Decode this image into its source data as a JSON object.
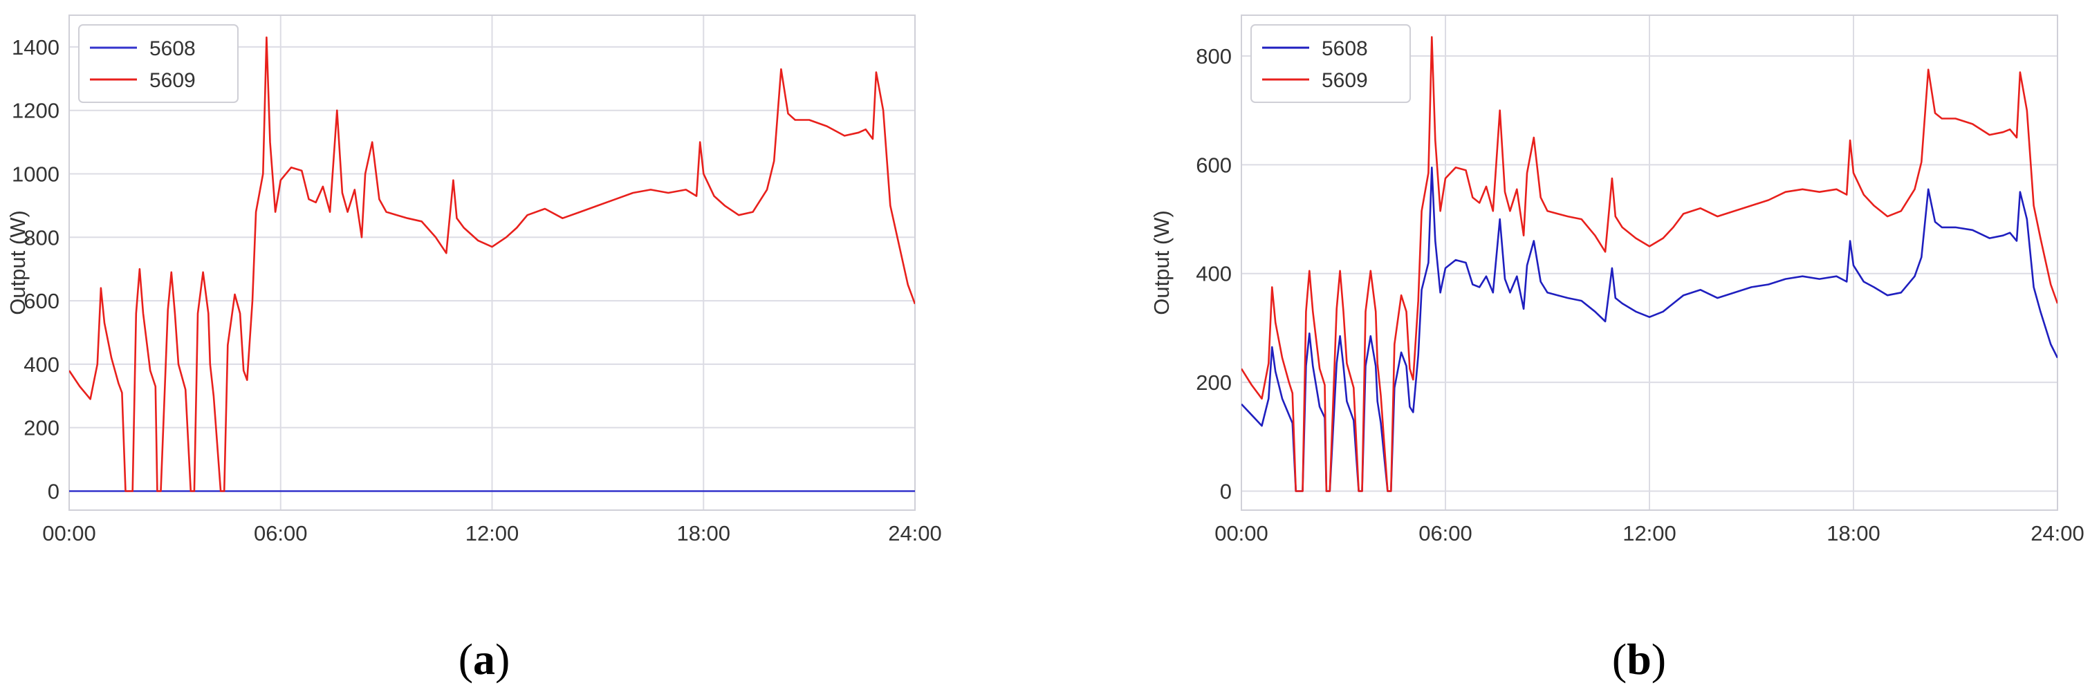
{
  "chart_data": [
    {
      "type": "line",
      "panel_label": "a",
      "xlabel": "",
      "ylabel": "Output (W)",
      "xlim": [
        0,
        24
      ],
      "ylim": [
        -60,
        1500
      ],
      "xticks": [
        0,
        6,
        12,
        18,
        24
      ],
      "xtick_labels": [
        "00:00",
        "06:00",
        "12:00",
        "18:00",
        "24:00"
      ],
      "yticks": [
        0,
        200,
        400,
        600,
        800,
        1000,
        1200,
        1400
      ],
      "ytick_labels": [
        "0",
        "200",
        "400",
        "600",
        "800",
        "1000",
        "1200",
        "1400"
      ],
      "grid": true,
      "legend": "top-left",
      "series": [
        {
          "name": "5608",
          "color": "#3333cc",
          "x": [
            0,
            24
          ],
          "y": [
            0,
            0
          ]
        },
        {
          "name": "5609",
          "color": "#e8201c",
          "x": [
            0,
            0.3,
            0.6,
            0.8,
            0.9,
            1.0,
            1.2,
            1.4,
            1.5,
            1.6,
            1.8,
            1.9,
            2.0,
            2.1,
            2.3,
            2.45,
            2.5,
            2.6,
            2.8,
            2.9,
            3.0,
            3.1,
            3.3,
            3.45,
            3.55,
            3.65,
            3.8,
            3.95,
            4.0,
            4.1,
            4.3,
            4.4,
            4.5,
            4.7,
            4.85,
            4.95,
            5.05,
            5.2,
            5.3,
            5.5,
            5.6,
            5.7,
            5.85,
            6.0,
            6.3,
            6.6,
            6.8,
            7.0,
            7.2,
            7.4,
            7.6,
            7.75,
            7.9,
            8.1,
            8.3,
            8.4,
            8.6,
            8.8,
            9.0,
            9.3,
            9.6,
            10.0,
            10.4,
            10.7,
            10.9,
            11.0,
            11.2,
            11.6,
            12.0,
            12.4,
            12.7,
            13.0,
            13.5,
            14.0,
            14.5,
            15.0,
            15.5,
            16.0,
            16.5,
            17.0,
            17.5,
            17.8,
            17.9,
            18.0,
            18.3,
            18.6,
            19.0,
            19.4,
            19.8,
            20.0,
            20.2,
            20.4,
            20.6,
            21.0,
            21.5,
            22.0,
            22.4,
            22.6,
            22.8,
            22.9,
            23.1,
            23.3,
            23.5,
            23.8,
            24.0
          ],
          "y": [
            380,
            330,
            290,
            400,
            640,
            530,
            420,
            340,
            310,
            0,
            0,
            560,
            700,
            560,
            380,
            330,
            0,
            0,
            570,
            690,
            560,
            400,
            320,
            0,
            0,
            560,
            690,
            560,
            400,
            300,
            0,
            0,
            460,
            620,
            560,
            380,
            350,
            600,
            880,
            1000,
            1430,
            1100,
            880,
            980,
            1020,
            1010,
            920,
            910,
            960,
            880,
            1200,
            940,
            880,
            950,
            800,
            1000,
            1100,
            920,
            880,
            870,
            860,
            850,
            800,
            750,
            980,
            860,
            830,
            790,
            770,
            800,
            830,
            870,
            890,
            860,
            880,
            900,
            920,
            940,
            950,
            940,
            950,
            930,
            1100,
            1000,
            930,
            900,
            870,
            880,
            950,
            1040,
            1330,
            1190,
            1170,
            1170,
            1150,
            1120,
            1130,
            1140,
            1110,
            1320,
            1200,
            900,
            800,
            650,
            590
          ]
        }
      ]
    },
    {
      "type": "line",
      "panel_label": "b",
      "xlabel": "",
      "ylabel": "Output (W)",
      "xlim": [
        0,
        24
      ],
      "ylim": [
        -35,
        875
      ],
      "xticks": [
        0,
        6,
        12,
        18,
        24
      ],
      "xtick_labels": [
        "00:00",
        "06:00",
        "12:00",
        "18:00",
        "24:00"
      ],
      "yticks": [
        0,
        200,
        400,
        600,
        800
      ],
      "ytick_labels": [
        "0",
        "200",
        "400",
        "600",
        "800"
      ],
      "grid": true,
      "legend": "top-left",
      "series": [
        {
          "name": "5608",
          "color": "#1f1fbf",
          "x": [
            0,
            0.3,
            0.6,
            0.8,
            0.9,
            1.0,
            1.2,
            1.4,
            1.5,
            1.6,
            1.8,
            1.9,
            2.0,
            2.1,
            2.3,
            2.45,
            2.5,
            2.6,
            2.8,
            2.9,
            3.0,
            3.1,
            3.3,
            3.45,
            3.55,
            3.65,
            3.8,
            3.95,
            4.0,
            4.1,
            4.3,
            4.4,
            4.5,
            4.7,
            4.85,
            4.95,
            5.05,
            5.2,
            5.3,
            5.5,
            5.6,
            5.7,
            5.85,
            6.0,
            6.3,
            6.6,
            6.8,
            7.0,
            7.2,
            7.4,
            7.6,
            7.75,
            7.9,
            8.1,
            8.3,
            8.4,
            8.6,
            8.8,
            9.0,
            9.3,
            9.6,
            10.0,
            10.4,
            10.7,
            10.9,
            11.0,
            11.2,
            11.6,
            12.0,
            12.4,
            12.7,
            13.0,
            13.5,
            14.0,
            14.5,
            15.0,
            15.5,
            16.0,
            16.5,
            17.0,
            17.5,
            17.8,
            17.9,
            18.0,
            18.3,
            18.6,
            19.0,
            19.4,
            19.8,
            20.0,
            20.2,
            20.4,
            20.6,
            21.0,
            21.5,
            22.0,
            22.4,
            22.6,
            22.8,
            22.9,
            23.1,
            23.3,
            23.5,
            23.8,
            24.0
          ],
          "y": [
            160,
            140,
            120,
            170,
            265,
            220,
            170,
            140,
            125,
            0,
            0,
            230,
            290,
            230,
            155,
            135,
            0,
            0,
            235,
            285,
            230,
            165,
            130,
            0,
            0,
            230,
            285,
            230,
            165,
            125,
            0,
            0,
            190,
            255,
            230,
            155,
            145,
            250,
            370,
            420,
            595,
            460,
            365,
            410,
            425,
            420,
            380,
            375,
            395,
            365,
            500,
            390,
            365,
            395,
            335,
            415,
            460,
            385,
            365,
            360,
            355,
            350,
            330,
            312,
            410,
            355,
            345,
            330,
            320,
            330,
            345,
            360,
            370,
            355,
            365,
            375,
            380,
            390,
            395,
            390,
            395,
            385,
            460,
            415,
            385,
            375,
            360,
            365,
            395,
            430,
            555,
            495,
            485,
            485,
            480,
            465,
            470,
            475,
            460,
            550,
            500,
            375,
            330,
            270,
            245
          ]
        },
        {
          "name": "5609",
          "color": "#e8201c",
          "x": [
            0,
            0.3,
            0.6,
            0.8,
            0.9,
            1.0,
            1.2,
            1.4,
            1.5,
            1.6,
            1.8,
            1.9,
            2.0,
            2.1,
            2.3,
            2.45,
            2.5,
            2.6,
            2.8,
            2.9,
            3.0,
            3.1,
            3.3,
            3.45,
            3.55,
            3.65,
            3.8,
            3.95,
            4.0,
            4.1,
            4.3,
            4.4,
            4.5,
            4.7,
            4.85,
            4.95,
            5.05,
            5.2,
            5.3,
            5.5,
            5.6,
            5.7,
            5.85,
            6.0,
            6.3,
            6.6,
            6.8,
            7.0,
            7.2,
            7.4,
            7.6,
            7.75,
            7.9,
            8.1,
            8.3,
            8.4,
            8.6,
            8.8,
            9.0,
            9.3,
            9.6,
            10.0,
            10.4,
            10.7,
            10.9,
            11.0,
            11.2,
            11.6,
            12.0,
            12.4,
            12.7,
            13.0,
            13.5,
            14.0,
            14.5,
            15.0,
            15.5,
            16.0,
            16.5,
            17.0,
            17.5,
            17.8,
            17.9,
            18.0,
            18.3,
            18.6,
            19.0,
            19.4,
            19.8,
            20.0,
            20.2,
            20.4,
            20.6,
            21.0,
            21.5,
            22.0,
            22.4,
            22.6,
            22.8,
            22.9,
            23.1,
            23.3,
            23.5,
            23.8,
            24.0
          ],
          "y": [
            225,
            195,
            170,
            235,
            375,
            310,
            245,
            200,
            180,
            0,
            0,
            330,
            405,
            330,
            225,
            195,
            0,
            0,
            335,
            405,
            330,
            235,
            190,
            0,
            0,
            330,
            405,
            330,
            235,
            175,
            0,
            0,
            270,
            360,
            330,
            225,
            205,
            350,
            515,
            585,
            835,
            645,
            515,
            575,
            595,
            590,
            540,
            530,
            560,
            515,
            700,
            550,
            515,
            555,
            470,
            585,
            650,
            540,
            515,
            510,
            505,
            500,
            470,
            440,
            575,
            505,
            485,
            465,
            450,
            465,
            485,
            510,
            520,
            505,
            515,
            525,
            535,
            550,
            555,
            550,
            555,
            545,
            645,
            585,
            545,
            525,
            505,
            515,
            555,
            605,
            775,
            695,
            685,
            685,
            675,
            655,
            660,
            665,
            650,
            770,
            700,
            525,
            465,
            380,
            345
          ]
        }
      ]
    }
  ]
}
